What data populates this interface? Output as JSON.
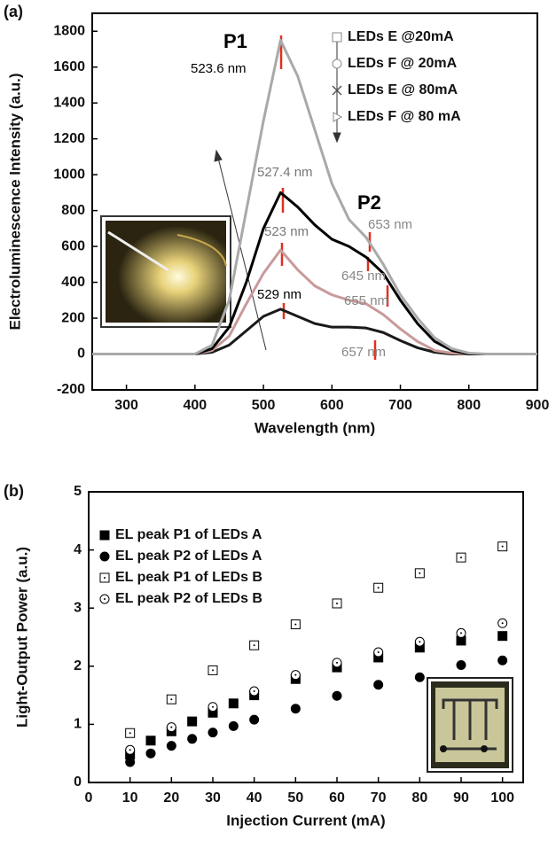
{
  "chart_data": [
    {
      "type": "line",
      "panel_label": "(a)",
      "x_label": "Wavelength (nm)",
      "y_label": "Electroluminescence Intensity (a.u.)",
      "xlim": [
        250,
        900
      ],
      "ylim": [
        -200,
        1900
      ],
      "xticks": [
        300,
        400,
        500,
        600,
        700,
        800,
        900
      ],
      "yticks": [
        -200,
        0,
        200,
        400,
        600,
        800,
        1000,
        1200,
        1400,
        1600,
        1800
      ],
      "x": [
        250,
        275,
        300,
        325,
        350,
        375,
        400,
        425,
        450,
        475,
        500,
        525,
        550,
        575,
        600,
        625,
        650,
        675,
        700,
        725,
        750,
        775,
        800,
        825,
        850,
        875,
        900
      ],
      "series": [
        {
          "name": "LEDs E @20mA",
          "color": "#1a1a1a",
          "marker": "square",
          "values": [
            0,
            0,
            0,
            0,
            0,
            0,
            0,
            10,
            50,
            130,
            210,
            250,
            210,
            170,
            150,
            150,
            145,
            120,
            75,
            35,
            10,
            0,
            0,
            0,
            0,
            0,
            0
          ]
        },
        {
          "name": "LEDs F @ 20mA",
          "color": "#c99a9a",
          "marker": "circle",
          "values": [
            0,
            0,
            0,
            0,
            0,
            0,
            0,
            20,
            100,
            280,
            450,
            580,
            470,
            380,
            330,
            300,
            280,
            220,
            140,
            70,
            20,
            5,
            0,
            0,
            0,
            0,
            0
          ]
        },
        {
          "name": "LEDs E @ 80mA",
          "color": "#000000",
          "marker": "cross",
          "values": [
            0,
            0,
            0,
            0,
            0,
            0,
            0,
            30,
            150,
            400,
            700,
            900,
            820,
            720,
            640,
            600,
            540,
            450,
            300,
            170,
            70,
            20,
            0,
            0,
            0,
            0,
            0
          ]
        },
        {
          "name": "LEDs F @ 80 mA",
          "color": "#a9a9a9",
          "marker": "triangle",
          "values": [
            0,
            0,
            0,
            0,
            0,
            0,
            0,
            50,
            300,
            800,
            1300,
            1750,
            1550,
            1250,
            950,
            750,
            650,
            500,
            330,
            200,
            90,
            30,
            5,
            0,
            0,
            0,
            0
          ]
        }
      ],
      "annotations": [
        "P1",
        "523.6 nm",
        "527.4 nm",
        "523 nm",
        "529 nm",
        "P2",
        "653 nm",
        "645 nm",
        "655 nm",
        "657 nm"
      ]
    },
    {
      "type": "scatter",
      "panel_label": "(b)",
      "x_label": "Injection Current (mA)",
      "y_label": "Light-Output Power (a.u.)",
      "xlim": [
        0,
        105
      ],
      "ylim": [
        0,
        5
      ],
      "xticks": [
        0,
        10,
        20,
        30,
        40,
        50,
        60,
        70,
        80,
        90,
        100
      ],
      "yticks": [
        0,
        1,
        2,
        3,
        4,
        5
      ],
      "series": [
        {
          "name": "EL peak P1 of LEDs A",
          "color": "#000000",
          "marker": "square-filled",
          "x": [
            10,
            15,
            20,
            25,
            30,
            35,
            40,
            50,
            60,
            70,
            80,
            90,
            100
          ],
          "values": [
            0.48,
            0.72,
            0.88,
            1.05,
            1.2,
            1.36,
            1.5,
            1.78,
            1.98,
            2.15,
            2.32,
            2.44,
            2.52
          ]
        },
        {
          "name": "EL peak P2 of LEDs A",
          "color": "#000000",
          "marker": "circle-filled",
          "x": [
            10,
            15,
            20,
            25,
            30,
            35,
            40,
            50,
            60,
            70,
            80,
            90,
            100
          ],
          "values": [
            0.35,
            0.5,
            0.63,
            0.75,
            0.86,
            0.97,
            1.08,
            1.27,
            1.49,
            1.68,
            1.81,
            2.02,
            2.1
          ]
        },
        {
          "name": "EL peak P1 of LEDs B",
          "color": "#000000",
          "marker": "square-dot",
          "x": [
            10,
            20,
            30,
            40,
            50,
            60,
            70,
            80,
            90,
            100
          ],
          "values": [
            0.85,
            1.43,
            1.93,
            2.36,
            2.72,
            3.08,
            3.35,
            3.6,
            3.87,
            4.06
          ]
        },
        {
          "name": "EL peak P2 of LEDs B",
          "color": "#000000",
          "marker": "circle-dot",
          "x": [
            10,
            20,
            30,
            40,
            50,
            60,
            70,
            80,
            90,
            100
          ],
          "values": [
            0.56,
            0.95,
            1.3,
            1.57,
            1.85,
            2.06,
            2.24,
            2.42,
            2.57,
            2.74
          ]
        }
      ]
    }
  ]
}
